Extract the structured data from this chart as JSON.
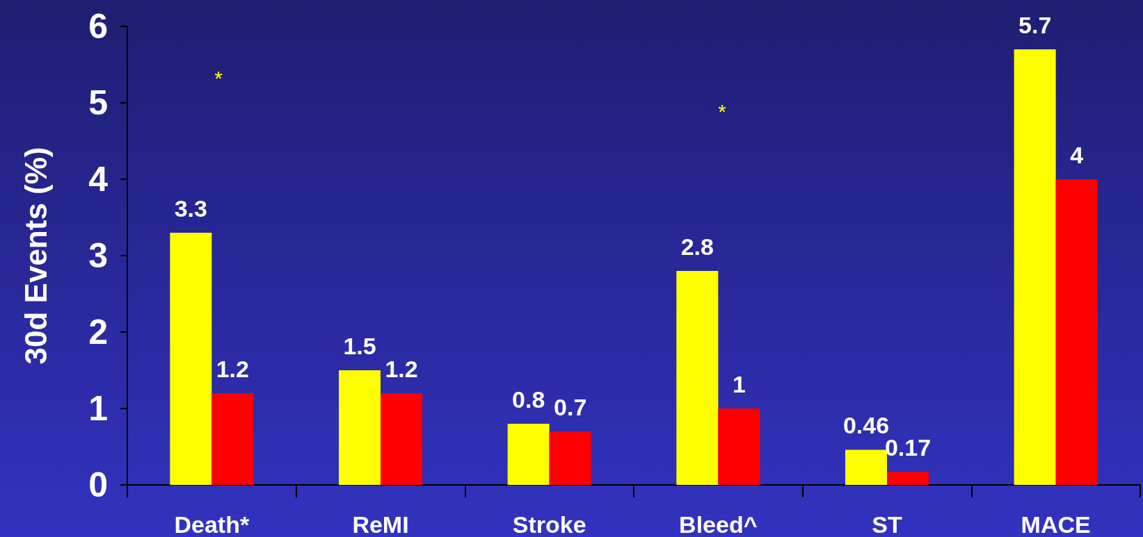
{
  "chart_data": {
    "type": "bar",
    "ylabel": "30d Events (%)",
    "categories": [
      "Death*",
      "ReMI",
      "Stroke",
      "Bleed^",
      "ST",
      "MACE"
    ],
    "series": [
      {
        "color": "#ffff00",
        "values": [
          3.3,
          1.5,
          0.8,
          2.8,
          0.46,
          5.7
        ]
      },
      {
        "color": "#ff0000",
        "values": [
          1.2,
          1.2,
          0.7,
          1,
          0.17,
          4
        ]
      }
    ],
    "ylim": [
      0,
      6
    ],
    "yticks": [
      0,
      1,
      2,
      3,
      4,
      5,
      6
    ],
    "grid": false,
    "data_labels": true,
    "annotations": [
      "*",
      "*"
    ]
  }
}
